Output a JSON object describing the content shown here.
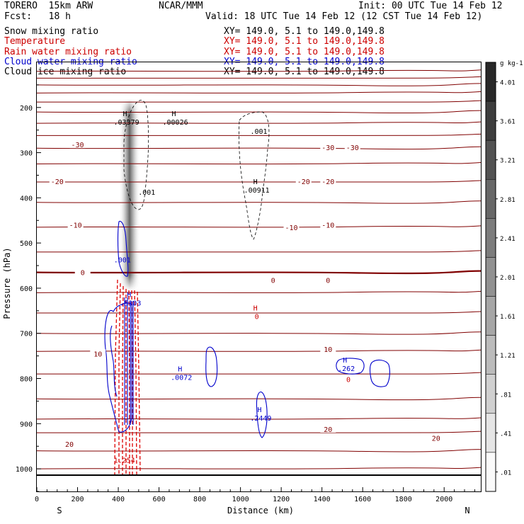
{
  "header": {
    "model_line": "TORERO  15km ARW",
    "center": "NCAR/MMM",
    "init": "Init: 00 UTC Tue 14 Feb 12",
    "fcst_line": "Fcst:   18 h",
    "valid": "Valid: 18 UTC Tue 14 Feb 12 (12 CST Tue 14 Feb 12)"
  },
  "legend": [
    {
      "label": "Snow mixing ratio",
      "xy": "XY= 149.0,  5.1 to 149.0,149.8",
      "color": "#000000"
    },
    {
      "label": "Temperature",
      "xy": "XY= 149.0,  5.1 to 149.0,149.8",
      "color": "#cc0000"
    },
    {
      "label": "Rain water mixing ratio",
      "xy": "XY= 149.0,  5.1 to 149.0,149.8",
      "color": "#cc0000"
    },
    {
      "label": "Cloud water mixing ratio",
      "xy": "XY= 149.0,  5.1 to 149.0,149.8",
      "color": "#0000cc"
    },
    {
      "label": "Cloud ice mixing ratio",
      "xy": "XY= 149.0,  5.1 to 149.0,149.8",
      "color": "#000000"
    }
  ],
  "chart_data": {
    "type": "cross-section contour",
    "ylabel": "Pressure (hPa)",
    "xlabel": "Distance (km)",
    "x_start_label": "S",
    "x_end_label": "N",
    "xlim": [
      0,
      2180
    ],
    "ylim": [
      1050,
      100
    ],
    "x_ticks": [
      0,
      200,
      400,
      600,
      800,
      1000,
      1200,
      1400,
      1600,
      1800,
      2000
    ],
    "y_ticks": [
      200,
      300,
      400,
      500,
      600,
      700,
      800,
      900,
      1000
    ],
    "colorbar": {
      "unit": "g kg-1",
      "ticks": [
        "4.01",
        "3.61",
        "3.21",
        "2.81",
        "2.41",
        "2.01",
        "1.61",
        "1.21",
        ".81",
        ".41",
        ".01"
      ],
      "tick_values": [
        4.01,
        3.61,
        3.21,
        2.81,
        2.41,
        2.01,
        1.61,
        1.21,
        0.81,
        0.41,
        0.01
      ]
    },
    "isotherms": [
      {
        "label": "-30",
        "p": 290
      },
      {
        "label": "-20",
        "p": 365
      },
      {
        "label": "-10",
        "p": 465
      },
      {
        "label": "0",
        "p": 565
      },
      {
        "label": "10",
        "p": 740
      },
      {
        "label": "20",
        "p": 920
      }
    ],
    "isotherm_labels": [
      {
        "text": "-30",
        "x": 200,
        "p": 282
      },
      {
        "text": "-30",
        "x": 1430,
        "p": 288
      },
      {
        "text": "-30",
        "x": 1550,
        "p": 288
      },
      {
        "text": "-20",
        "x": 100,
        "p": 363
      },
      {
        "text": "-20",
        "x": 1310,
        "p": 363
      },
      {
        "text": "-20",
        "x": 1430,
        "p": 363
      },
      {
        "text": "-10",
        "x": 190,
        "p": 460
      },
      {
        "text": "-10",
        "x": 1250,
        "p": 465
      },
      {
        "text": "-10",
        "x": 1430,
        "p": 460
      },
      {
        "text": "0",
        "x": 225,
        "p": 565
      },
      {
        "text": "0",
        "x": 1160,
        "p": 582
      },
      {
        "text": "0",
        "x": 1430,
        "p": 582
      },
      {
        "text": "10",
        "x": 300,
        "p": 745
      },
      {
        "text": "10",
        "x": 1430,
        "p": 735
      },
      {
        "text": "20",
        "x": 160,
        "p": 945
      },
      {
        "text": "20",
        "x": 1430,
        "p": 912
      },
      {
        "text": "20",
        "x": 1960,
        "p": 932
      }
    ],
    "maxima": [
      {
        "letter": "H",
        "value": ".03379",
        "x": 440,
        "p": 235,
        "color": "#000000"
      },
      {
        "letter": "H",
        "value": ".00026",
        "x": 680,
        "p": 235,
        "color": "#000000"
      },
      {
        "letter": "",
        "value": ".001",
        "x": 1090,
        "p": 255,
        "color": "#000000"
      },
      {
        "letter": "",
        "value": ".001",
        "x": 540,
        "p": 390,
        "color": "#000000"
      },
      {
        "letter": "H",
        "value": ".00911",
        "x": 1080,
        "p": 385,
        "color": "#000000"
      },
      {
        "letter": "",
        "value": ".001",
        "x": 420,
        "p": 540,
        "color": "#0000cc"
      },
      {
        "letter": "H",
        "value": ".5303",
        "x": 460,
        "p": 635,
        "color": "#0000cc"
      },
      {
        "letter": "H",
        "value": "0",
        "x": 1080,
        "p": 665,
        "color": "#cc0000"
      },
      {
        "letter": "H",
        "value": ".0072",
        "x": 710,
        "p": 800,
        "color": "#0000cc"
      },
      {
        "letter": "H",
        "value": ".262",
        "x": 1520,
        "p": 780,
        "color": "#0000cc"
      },
      {
        "letter": "",
        "value": "0",
        "x": 1530,
        "p": 805,
        "color": "#cc0000"
      },
      {
        "letter": "H",
        "value": ".2449",
        "x": 1100,
        "p": 890,
        "color": "#0000cc"
      },
      {
        "letter": "",
        "value": "1.254",
        "x": 430,
        "p": 983,
        "color": "#cc0000"
      }
    ]
  }
}
